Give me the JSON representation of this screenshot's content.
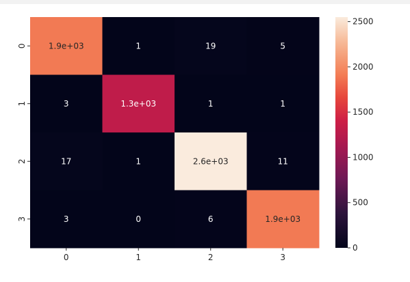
{
  "chart_data": {
    "type": "heatmap",
    "title": "",
    "xlabel": "",
    "ylabel": "",
    "x_categories": [
      "0",
      "1",
      "2",
      "3"
    ],
    "y_categories": [
      "0",
      "1",
      "2",
      "3"
    ],
    "values": [
      [
        1900,
        1,
        19,
        5
      ],
      [
        3,
        1300,
        1,
        1
      ],
      [
        17,
        1,
        2600,
        11
      ],
      [
        3,
        0,
        6,
        1900
      ]
    ],
    "annotations": [
      [
        "1.9e+03",
        "1",
        "19",
        "5"
      ],
      [
        "3",
        "1.3e+03",
        "1",
        "1"
      ],
      [
        "17",
        "1",
        "2.6e+03",
        "11"
      ],
      [
        "3",
        "0",
        "6",
        "1.9e+03"
      ]
    ],
    "colorbar": {
      "range": [
        0,
        2550
      ],
      "ticks": [
        0,
        500,
        1000,
        1500,
        2000,
        2500
      ],
      "tick_labels": [
        "0",
        "500",
        "1000",
        "1500",
        "2000",
        "2500"
      ]
    },
    "colormap": "rocket",
    "grid": false,
    "legend": "none"
  }
}
